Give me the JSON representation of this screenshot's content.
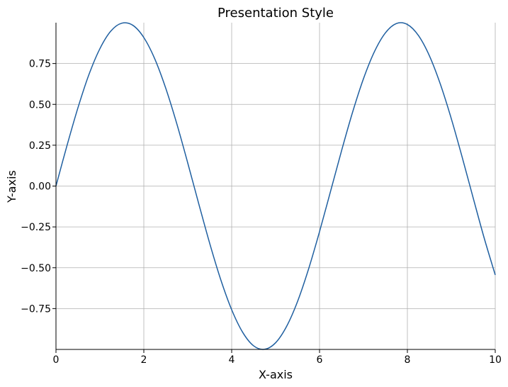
{
  "chart_data": {
    "type": "line",
    "title": "Presentation Style",
    "xlabel": "X-axis",
    "ylabel": "Y-axis",
    "xlim": [
      0,
      10
    ],
    "ylim": [
      -1,
      1
    ],
    "x_ticks": [
      0,
      2,
      4,
      6,
      8,
      10
    ],
    "x_tick_labels": [
      "0",
      "2",
      "4",
      "6",
      "8",
      "10"
    ],
    "y_ticks": [
      -0.75,
      -0.5,
      -0.25,
      0,
      0.25,
      0.5,
      0.75
    ],
    "y_tick_labels": [
      "−0.75",
      "−0.50",
      "−0.25",
      "0.00",
      "0.25",
      "0.50",
      "0.75"
    ],
    "grid": true,
    "legend": "none",
    "series": [
      {
        "color": "#1f5fa0",
        "x": [
          0.0,
          0.25,
          0.5,
          0.75,
          1.0,
          1.25,
          1.5,
          1.75,
          2.0,
          2.25,
          2.5,
          2.75,
          3.0,
          3.25,
          3.5,
          3.75,
          4.0,
          4.25,
          4.5,
          4.75,
          5.0,
          5.25,
          5.5,
          5.75,
          6.0,
          6.25,
          6.5,
          6.75,
          7.0,
          7.25,
          7.5,
          7.75,
          8.0,
          8.25,
          8.5,
          8.75,
          9.0,
          9.25,
          9.5,
          9.75,
          10.0
        ],
        "y": [
          0.0,
          0.247,
          0.479,
          0.682,
          0.841,
          0.949,
          0.997,
          0.984,
          0.909,
          0.778,
          0.598,
          0.382,
          0.141,
          -0.108,
          -0.351,
          -0.572,
          -0.757,
          -0.895,
          -0.978,
          -0.999,
          -0.959,
          -0.859,
          -0.706,
          -0.508,
          -0.279,
          -0.033,
          0.215,
          0.45,
          0.657,
          0.823,
          0.938,
          0.995,
          0.989,
          0.922,
          0.798,
          0.624,
          0.412,
          0.174,
          -0.075,
          -0.32,
          -0.544
        ]
      }
    ]
  }
}
